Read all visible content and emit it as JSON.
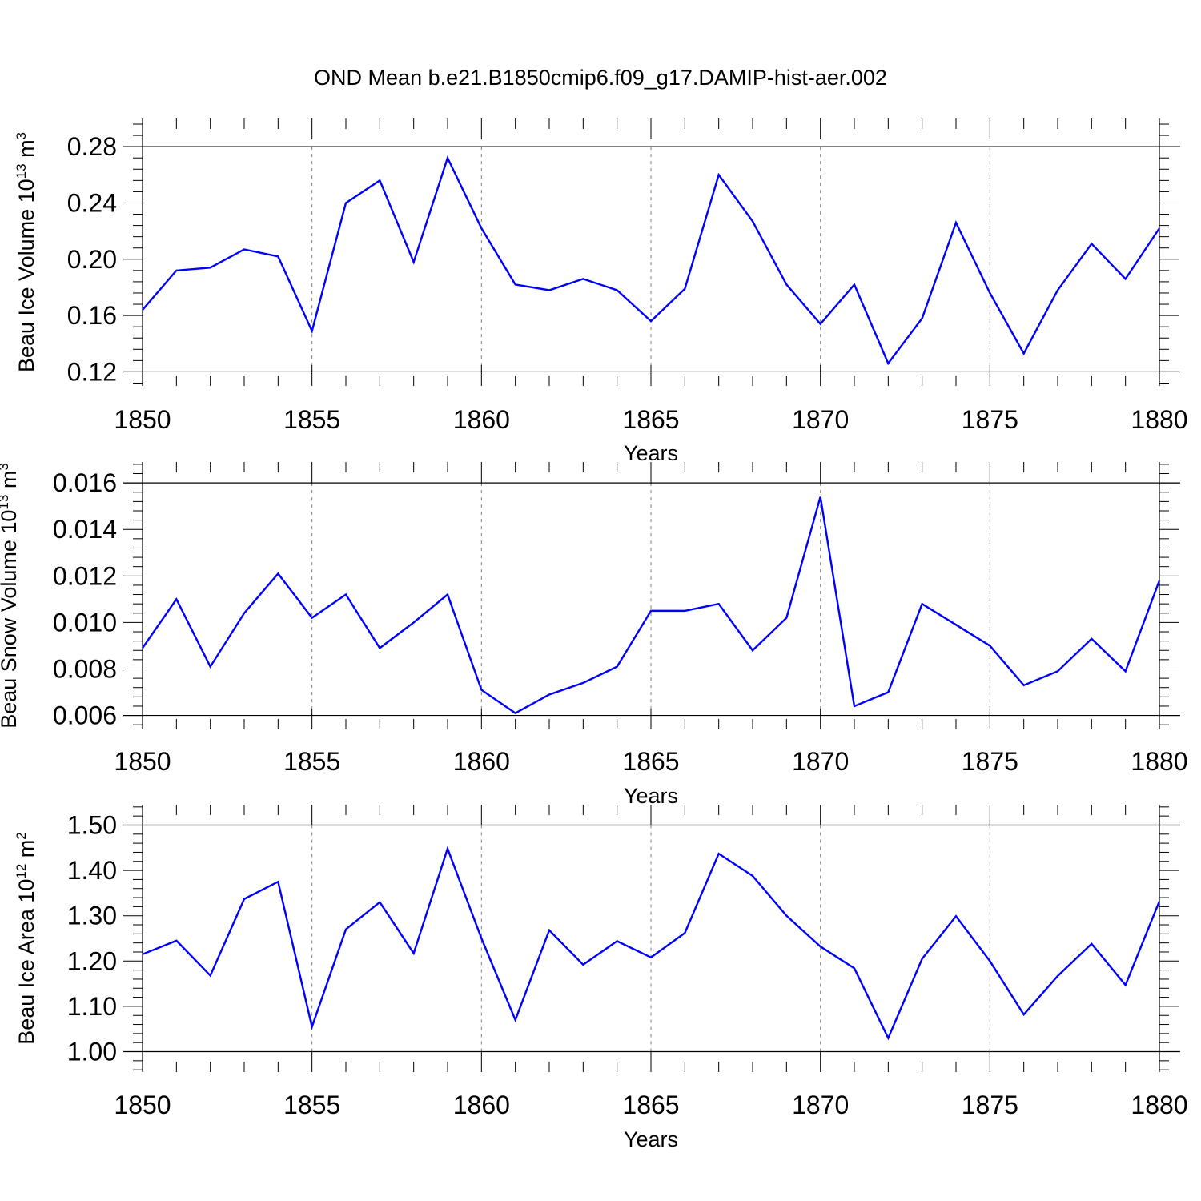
{
  "title": "OND Mean b.e21.B1850cmip6.f09_g17.DAMIP-hist-aer.002",
  "colors": {
    "line": "#0000ff",
    "axis": "#000000",
    "grid": "#7f7f7f"
  },
  "chart_data": [
    {
      "type": "line",
      "title": "",
      "ylabel_main": "Beau Ice Volume 10",
      "ylabel_sup1": "13",
      "ylabel_unit": " m",
      "ylabel_sup2": "3",
      "xlabel": "Years",
      "xlim": [
        1850,
        1880
      ],
      "ylim": [
        0.11,
        0.3
      ],
      "yticks": [
        0.12,
        0.16,
        0.2,
        0.24,
        0.28
      ],
      "ytick_labels": [
        "0.12",
        "0.16",
        "0.20",
        "0.24",
        "0.28"
      ],
      "yminor_step": 0.008,
      "xticks": [
        1850,
        1855,
        1860,
        1865,
        1870,
        1875,
        1880
      ],
      "xtick_labels": [
        "1850",
        "1855",
        "1860",
        "1865",
        "1870",
        "1875",
        "1880"
      ],
      "grid": "vertical dashed at major x ticks",
      "series": [
        {
          "name": "Beau Ice Volume",
          "x": [
            1850,
            1851,
            1852,
            1853,
            1854,
            1855,
            1856,
            1857,
            1858,
            1859,
            1860,
            1861,
            1862,
            1863,
            1864,
            1865,
            1866,
            1867,
            1868,
            1869,
            1870,
            1871,
            1872,
            1873,
            1874,
            1875,
            1876,
            1877,
            1878,
            1879,
            1880
          ],
          "values": [
            0.164,
            0.192,
            0.194,
            0.207,
            0.202,
            0.149,
            0.24,
            0.256,
            0.198,
            0.272,
            0.222,
            0.182,
            0.178,
            0.186,
            0.178,
            0.156,
            0.179,
            0.26,
            0.227,
            0.182,
            0.154,
            0.182,
            0.126,
            0.158,
            0.226,
            0.176,
            0.133,
            0.178,
            0.211,
            0.186,
            0.222
          ]
        }
      ]
    },
    {
      "type": "line",
      "title": "",
      "ylabel_main": "Beau Snow Volume 10",
      "ylabel_sup1": "13",
      "ylabel_unit": " m",
      "ylabel_sup2": "3",
      "xlabel": "Years",
      "xlim": [
        1850,
        1880
      ],
      "ylim": [
        0.0054,
        0.0169
      ],
      "yticks": [
        0.006,
        0.008,
        0.01,
        0.012,
        0.014,
        0.016
      ],
      "ytick_labels": [
        "0.006",
        "0.008",
        "0.010",
        "0.012",
        "0.014",
        "0.016"
      ],
      "yminor_step": 0.0004,
      "xticks": [
        1850,
        1855,
        1860,
        1865,
        1870,
        1875,
        1880
      ],
      "xtick_labels": [
        "1850",
        "1855",
        "1860",
        "1865",
        "1870",
        "1875",
        "1880"
      ],
      "grid": "vertical dashed at major x ticks",
      "series": [
        {
          "name": "Beau Snow Volume",
          "x": [
            1850,
            1851,
            1852,
            1853,
            1854,
            1855,
            1856,
            1857,
            1858,
            1859,
            1860,
            1861,
            1862,
            1863,
            1864,
            1865,
            1866,
            1867,
            1868,
            1869,
            1870,
            1871,
            1872,
            1873,
            1874,
            1875,
            1876,
            1877,
            1878,
            1879,
            1880
          ],
          "values": [
            0.0089,
            0.011,
            0.0081,
            0.0104,
            0.0121,
            0.0102,
            0.0112,
            0.0089,
            0.01,
            0.0112,
            0.0071,
            0.0061,
            0.0069,
            0.0074,
            0.0081,
            0.0105,
            0.0105,
            0.0108,
            0.0088,
            0.0102,
            0.0154,
            0.0064,
            0.007,
            0.0108,
            0.0099,
            0.009,
            0.0073,
            0.0079,
            0.0093,
            0.0079,
            0.0118
          ]
        }
      ]
    },
    {
      "type": "line",
      "title": "",
      "ylabel_main": "Beau Ice Area 10",
      "ylabel_sup1": "12",
      "ylabel_unit": " m",
      "ylabel_sup2": "2",
      "xlabel": "Years",
      "xlim": [
        1850,
        1880
      ],
      "ylim": [
        0.955,
        1.545
      ],
      "yticks": [
        1.0,
        1.1,
        1.2,
        1.3,
        1.4,
        1.5
      ],
      "ytick_labels": [
        "1.00",
        "1.10",
        "1.20",
        "1.30",
        "1.40",
        "1.50"
      ],
      "yminor_step": 0.02,
      "xticks": [
        1850,
        1855,
        1860,
        1865,
        1870,
        1875,
        1880
      ],
      "xtick_labels": [
        "1850",
        "1855",
        "1860",
        "1865",
        "1870",
        "1875",
        "1880"
      ],
      "grid": "vertical dashed at major x ticks",
      "series": [
        {
          "name": "Beau Ice Area",
          "x": [
            1850,
            1851,
            1852,
            1853,
            1854,
            1855,
            1856,
            1857,
            1858,
            1859,
            1860,
            1861,
            1862,
            1863,
            1864,
            1865,
            1866,
            1867,
            1868,
            1869,
            1870,
            1871,
            1872,
            1873,
            1874,
            1875,
            1876,
            1877,
            1878,
            1879,
            1880
          ],
          "values": [
            1.215,
            1.245,
            1.168,
            1.337,
            1.375,
            1.055,
            1.27,
            1.33,
            1.217,
            1.448,
            1.25,
            1.07,
            1.268,
            1.192,
            1.244,
            1.208,
            1.262,
            1.437,
            1.388,
            1.3,
            1.232,
            1.184,
            1.03,
            1.205,
            1.299,
            1.2,
            1.082,
            1.167,
            1.238,
            1.147,
            1.332
          ]
        }
      ]
    }
  ]
}
